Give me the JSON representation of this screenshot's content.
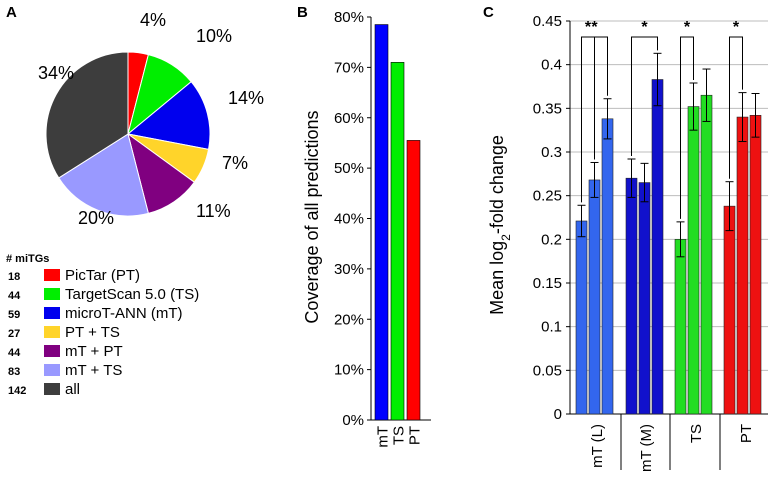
{
  "panels": {
    "a": "A",
    "b": "B",
    "c": "C"
  },
  "chart_data": [
    {
      "type": "pie",
      "panel": "A",
      "slices": [
        {
          "label": "PicTar (PT)",
          "value": 4,
          "text": "4%",
          "color": "#ff0000",
          "count": "18"
        },
        {
          "label": "TargetScan 5.0 (TS)",
          "value": 10,
          "text": "10%",
          "color": "#00ee00",
          "count": "44"
        },
        {
          "label": "microT-ANN (mT)",
          "value": 14,
          "text": "14%",
          "color": "#0000ee",
          "count": "59"
        },
        {
          "label": "PT + TS",
          "value": 7,
          "text": "7%",
          "color": "#ffd42a",
          "count": "27"
        },
        {
          "label": "mT + PT",
          "value": 11,
          "text": "11%",
          "color": "#800080",
          "count": "44"
        },
        {
          "label": "mT + TS",
          "value": 20,
          "text": "20%",
          "color": "#9999ff",
          "count": "83"
        },
        {
          "label": "all",
          "value": 34,
          "text": "34%",
          "color": "#3d3d3d",
          "count": "142"
        }
      ],
      "legend_title": "# miTGs"
    },
    {
      "type": "bar",
      "panel": "B",
      "categories": [
        "mT",
        "TS",
        "PT"
      ],
      "values": [
        78.5,
        71,
        55.5
      ],
      "colors": [
        "#0000ff",
        "#00ee00",
        "#ff0000"
      ],
      "ylabel": "Coverage of all predictions",
      "ylim": [
        0,
        80
      ],
      "yticks": [
        "0%",
        "10%",
        "20%",
        "30%",
        "40%",
        "50%",
        "60%",
        "70%",
        "80%"
      ]
    },
    {
      "type": "bar",
      "panel": "C",
      "groups": [
        "mT (L)",
        "mT (M)",
        "TS",
        "PT"
      ],
      "bars": [
        {
          "group": 0,
          "value": 0.221,
          "err": 0.018,
          "color": "#3366ee"
        },
        {
          "group": 0,
          "value": 0.268,
          "err": 0.02,
          "color": "#3366ee"
        },
        {
          "group": 0,
          "value": 0.338,
          "err": 0.023,
          "color": "#3366ee"
        },
        {
          "group": 1,
          "value": 0.27,
          "err": 0.022,
          "color": "#1111cc"
        },
        {
          "group": 1,
          "value": 0.265,
          "err": 0.022,
          "color": "#1111cc"
        },
        {
          "group": 1,
          "value": 0.383,
          "err": 0.03,
          "color": "#1111cc"
        },
        {
          "group": 2,
          "value": 0.2,
          "err": 0.02,
          "color": "#22dd22"
        },
        {
          "group": 2,
          "value": 0.352,
          "err": 0.027,
          "color": "#22dd22"
        },
        {
          "group": 2,
          "value": 0.365,
          "err": 0.03,
          "color": "#22dd22"
        },
        {
          "group": 3,
          "value": 0.238,
          "err": 0.028,
          "color": "#ee1111"
        },
        {
          "group": 3,
          "value": 0.34,
          "err": 0.028,
          "color": "#ee1111"
        },
        {
          "group": 3,
          "value": 0.342,
          "err": 0.025,
          "color": "#ee1111"
        }
      ],
      "significance": [
        {
          "from": 0,
          "to": 1,
          "label": "*"
        },
        {
          "from": 0,
          "to": 2,
          "label": "*"
        },
        {
          "from": 3,
          "to": 5,
          "label": "*"
        },
        {
          "from": 6,
          "to": 7,
          "label": "*"
        },
        {
          "from": 9,
          "to": 10,
          "label": "*"
        }
      ],
      "ylabel_main": "Mean log",
      "ylabel_sub": "2",
      "ylabel_tail": "-fold change",
      "ylim": [
        0,
        0.45
      ],
      "yticks": [
        "0",
        "0.05",
        "0.1",
        "0.15",
        "0.2",
        "0.25",
        "0.3",
        "0.35",
        "0.4",
        "0.45"
      ],
      "grid": true
    }
  ]
}
